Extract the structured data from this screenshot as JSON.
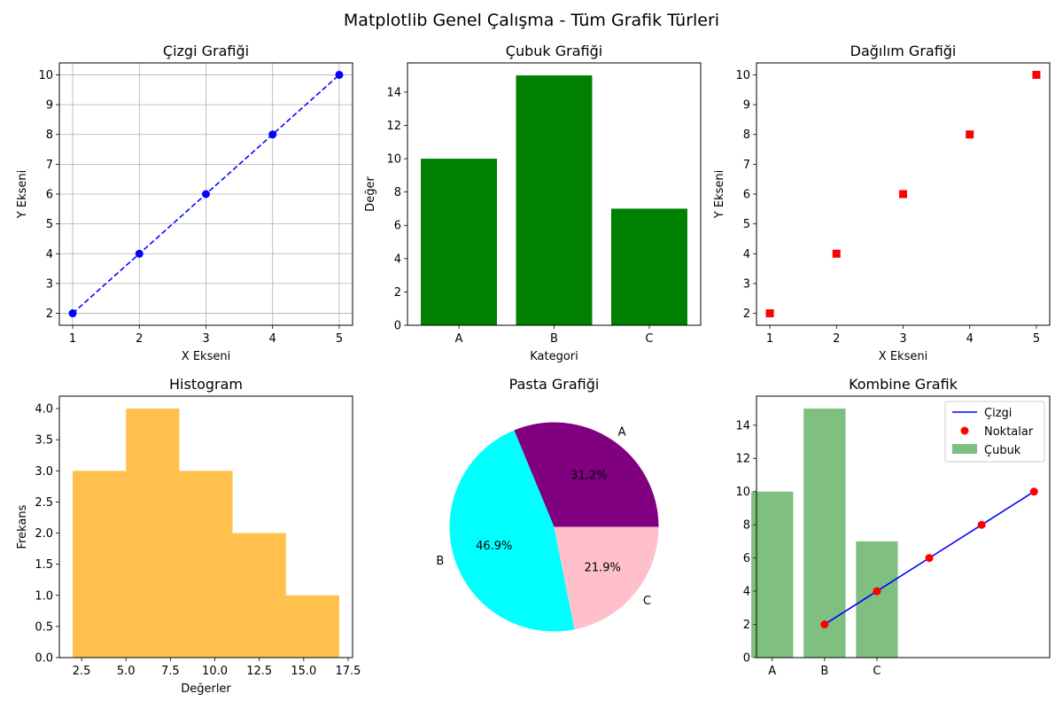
{
  "suptitle": "Matplotlib Genel Çalışma - Tüm Grafik Türleri",
  "colors": {
    "line": "#0000ff",
    "bar": "#008000",
    "scatter": "#ff0000",
    "hist": "#ffa500",
    "pie": [
      "#800080",
      "#00ffff",
      "#ffc0cb"
    ],
    "combo_bar": "#008000",
    "combo_line": "#0000ff",
    "combo_points": "#ff0000",
    "grid": "#b0b0b0"
  },
  "chart_data": [
    {
      "type": "line",
      "title": "Çizgi Grafiği",
      "xlabel": "X Ekseni",
      "ylabel": "Y Ekseni",
      "x": [
        1,
        2,
        3,
        4,
        5
      ],
      "y": [
        2,
        4,
        6,
        8,
        10
      ],
      "xticks": [
        "1",
        "2",
        "3",
        "4",
        "5"
      ],
      "yticks": [
        "2",
        "3",
        "4",
        "5",
        "6",
        "7",
        "8",
        "9",
        "10"
      ],
      "xlim": [
        0.8,
        5.2
      ],
      "ylim": [
        1.6,
        10.4
      ],
      "line_style": "dashed",
      "marker": "circle",
      "grid": true
    },
    {
      "type": "bar",
      "title": "Çubuk Grafiği",
      "xlabel": "Kategori",
      "ylabel": "Değer",
      "categories": [
        "A",
        "B",
        "C"
      ],
      "values": [
        10,
        15,
        7
      ],
      "yticks": [
        "0",
        "2",
        "4",
        "6",
        "8",
        "10",
        "12",
        "14"
      ],
      "ylim": [
        0,
        15.75
      ],
      "grid": false
    },
    {
      "type": "scatter",
      "title": "Dağılım Grafiği",
      "xlabel": "X Ekseni",
      "ylabel": "Y Ekseni",
      "x": [
        1,
        2,
        3,
        4,
        5
      ],
      "y": [
        2,
        4,
        6,
        8,
        10
      ],
      "xticks": [
        "1",
        "2",
        "3",
        "4",
        "5"
      ],
      "yticks": [
        "2",
        "3",
        "4",
        "5",
        "6",
        "7",
        "8",
        "9",
        "10"
      ],
      "xlim": [
        0.8,
        5.2
      ],
      "ylim": [
        1.6,
        10.4
      ],
      "marker": "square",
      "grid": false
    },
    {
      "type": "histogram",
      "title": "Histogram",
      "xlabel": "Değerler",
      "ylabel": "Frekans",
      "bins": [
        2,
        5,
        8,
        11,
        14,
        17
      ],
      "counts": [
        3,
        4,
        3,
        2,
        1
      ],
      "xticks": [
        "2.5",
        "5.0",
        "7.5",
        "10.0",
        "12.5",
        "15.0",
        "17.5"
      ],
      "yticks": [
        "0.0",
        "0.5",
        "1.0",
        "1.5",
        "2.0",
        "2.5",
        "3.0",
        "3.5",
        "4.0"
      ],
      "xlim": [
        1.25,
        17.75
      ],
      "ylim": [
        0,
        4.2
      ],
      "grid": false
    },
    {
      "type": "pie",
      "title": "Pasta Grafiği",
      "labels": [
        "A",
        "B",
        "C"
      ],
      "values": [
        10,
        15,
        7
      ],
      "percent_labels": [
        "31.2%",
        "46.9%",
        "21.9%"
      ]
    },
    {
      "type": "bar+line",
      "title": "Kombine Grafik",
      "categories": [
        "A",
        "B",
        "C"
      ],
      "bar_values": [
        10,
        15,
        7
      ],
      "x": [
        1,
        2,
        3,
        4,
        5
      ],
      "y": [
        2,
        4,
        6,
        8,
        10
      ],
      "yticks": [
        "0",
        "2",
        "4",
        "6",
        "8",
        "10",
        "12",
        "14"
      ],
      "ylim": [
        0,
        15.75
      ],
      "legend": [
        "Çizgi",
        "Noktalar",
        "Çubuk"
      ],
      "legend_position": "top-right",
      "grid": false
    }
  ]
}
